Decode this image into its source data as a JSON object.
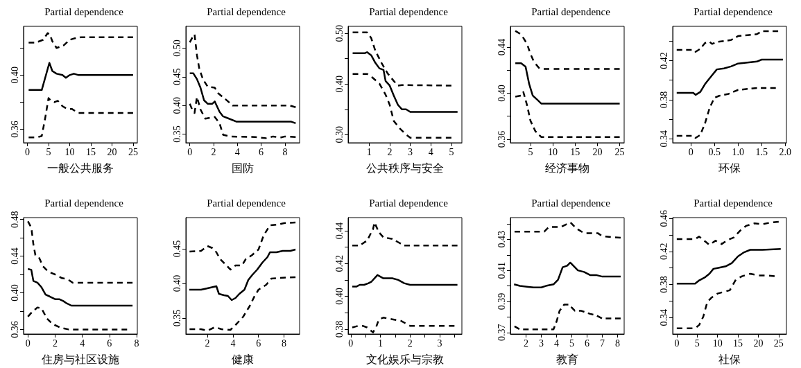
{
  "chart_data": [
    {
      "type": "line",
      "title": "Partial dependence",
      "xlabel": "一般公共服务",
      "xlim": [
        -0.9,
        26
      ],
      "ylim": [
        0.35,
        0.436
      ],
      "xticks": [
        0,
        5,
        10,
        15,
        20,
        25
      ],
      "yticks": [
        0.36,
        {
          "value": 0.38,
          "label": null
        },
        {
          "value": 0.4,
          "label": "0.40"
        },
        {
          "value": 0.42,
          "label": null
        }
      ],
      "series": [
        {
          "color": "#000000",
          "line_style": "solid",
          "x": [
            0.3,
            3.4,
            5.2,
            5.9,
            6.9,
            8.3,
            9.1,
            10,
            11,
            12.1,
            25
          ],
          "values": [
            0.389,
            0.389,
            0.409,
            0.403,
            0.401,
            0.4,
            0.398,
            0.4,
            0.401,
            0.4,
            0.4
          ]
        },
        {
          "color": "#000000",
          "line_style": "dashed",
          "x": [
            0.3,
            2,
            3.7,
            4.8,
            5.3,
            5.9,
            6.9,
            8.6,
            10,
            11,
            12.7,
            25
          ],
          "values": [
            0.424,
            0.424,
            0.426,
            0.431,
            0.43,
            0.425,
            0.42,
            0.422,
            0.426,
            0.427,
            0.428,
            0.428
          ]
        },
        {
          "color": "#000000",
          "line_style": "dashed",
          "x": [
            0.3,
            2.3,
            3.4,
            4.2,
            5,
            5.6,
            6.4,
            7.2,
            8.3,
            9.4,
            10.5,
            12.1,
            25
          ],
          "values": [
            0.354,
            0.354,
            0.355,
            0.368,
            0.383,
            0.381,
            0.38,
            0.381,
            0.377,
            0.375,
            0.375,
            0.372,
            0.372
          ]
        }
      ]
    },
    {
      "type": "line",
      "title": "Partial dependence",
      "xlabel": "国防",
      "xlim": [
        -0.33,
        9.23
      ],
      "ylim": [
        0.335,
        0.538
      ],
      "xticks": [
        0,
        2,
        4,
        6,
        8
      ],
      "yticks": [
        0.35,
        {
          "value": 0.4,
          "label": "0.40"
        },
        0.45,
        {
          "value": 0.5,
          "label": "0.50"
        }
      ],
      "series": [
        {
          "color": "#000000",
          "line_style": "solid",
          "x": [
            0,
            0.3,
            0.6,
            0.9,
            1.2,
            1.5,
            1.9,
            2.1,
            2.5,
            2.8,
            3.3,
            3.9,
            8.5,
            8.9
          ],
          "values": [
            0.456,
            0.456,
            0.446,
            0.431,
            0.409,
            0.403,
            0.403,
            0.407,
            0.389,
            0.381,
            0.377,
            0.372,
            0.372,
            0.369
          ]
        },
        {
          "color": "#000000",
          "line_style": "dashed",
          "x": [
            0,
            0.2,
            0.4,
            0.6,
            0.8,
            1.1,
            1.5,
            2.1,
            2.4,
            3,
            3.6,
            8.4,
            8.9
          ],
          "values": [
            0.51,
            0.518,
            0.524,
            0.488,
            0.464,
            0.446,
            0.433,
            0.431,
            0.421,
            0.411,
            0.4,
            0.4,
            0.397
          ]
        },
        {
          "color": "#000000",
          "line_style": "dashed",
          "x": [
            0,
            0.2,
            0.4,
            0.6,
            0.9,
            1.3,
            2.1,
            2.5,
            2.8,
            3.4,
            5.5,
            6.4,
            7.0,
            7.6,
            8.0,
            8.9
          ],
          "values": [
            0.403,
            0.393,
            0.387,
            0.415,
            0.393,
            0.377,
            0.38,
            0.369,
            0.349,
            0.346,
            0.345,
            0.343,
            0.346,
            0.344,
            0.346,
            0.345
          ]
        }
      ]
    },
    {
      "type": "line",
      "title": "Partial dependence",
      "xlabel": "公共秩序与安全",
      "xlim": [
        -0.02,
        5.51
      ],
      "ylim": [
        0.284,
        0.514
      ],
      "xticks": [
        1,
        2,
        3,
        4,
        5
      ],
      "yticks": [
        {
          "value": 0.3,
          "label": "0.30"
        },
        {
          "value": 0.35,
          "label": null
        },
        {
          "value": 0.4,
          "label": "0.40"
        },
        {
          "value": 0.45,
          "label": null
        },
        {
          "value": 0.5,
          "label": "0.50"
        }
      ],
      "series": [
        {
          "color": "#000000",
          "line_style": "solid",
          "x": [
            0.2,
            0.8,
            0.9,
            1.1,
            1.3,
            1.5,
            1.7,
            1.8,
            2.0,
            2.2,
            2.4,
            2.6,
            2.8,
            3.0,
            5.3
          ],
          "values": [
            0.461,
            0.461,
            0.463,
            0.457,
            0.442,
            0.431,
            0.428,
            0.406,
            0.397,
            0.377,
            0.359,
            0.35,
            0.35,
            0.345,
            0.345
          ]
        },
        {
          "color": "#000000",
          "line_style": "dashed",
          "x": [
            0.2,
            0.9,
            1.1,
            1.3,
            1.6,
            1.9,
            2.2,
            2.4,
            2.6,
            5.0
          ],
          "values": [
            0.502,
            0.502,
            0.491,
            0.466,
            0.442,
            0.421,
            0.406,
            0.397,
            0.398,
            0.397
          ]
        },
        {
          "color": "#000000",
          "line_style": "dashed",
          "x": [
            0.2,
            0.9,
            1.1,
            1.5,
            1.8,
            2.0,
            2.2,
            2.5,
            2.8,
            3.0,
            5.0
          ],
          "values": [
            0.42,
            0.42,
            0.415,
            0.401,
            0.379,
            0.359,
            0.327,
            0.312,
            0.3,
            0.294,
            0.294
          ]
        }
      ]
    },
    {
      "type": "line",
      "title": "Partial dependence",
      "xlabel": "经济事物",
      "xlim": [
        0.5,
        26
      ],
      "ylim": [
        0.357,
        0.458
      ],
      "xticks": [
        5,
        10,
        15,
        20,
        25
      ],
      "yticks": [
        0.36,
        {
          "value": 0.38,
          "label": null
        },
        {
          "value": 0.4,
          "label": "0.40"
        },
        {
          "value": 0.42,
          "label": null
        },
        0.44
      ],
      "series": [
        {
          "color": "#000000",
          "line_style": "solid",
          "x": [
            1.6,
            2.9,
            3.9,
            4.7,
            5.5,
            6.6,
            7.4,
            9.5,
            25
          ],
          "values": [
            0.426,
            0.426,
            0.423,
            0.408,
            0.398,
            0.394,
            0.391,
            0.391,
            0.391
          ]
        },
        {
          "color": "#000000",
          "line_style": "dashed",
          "x": [
            1.6,
            2.9,
            4.2,
            5,
            5.8,
            7.1,
            8.4,
            11,
            25
          ],
          "values": [
            0.454,
            0.451,
            0.443,
            0.434,
            0.427,
            0.421,
            0.421,
            0.421,
            0.421
          ]
        },
        {
          "color": "#000000",
          "line_style": "dashed",
          "x": [
            1.6,
            2.9,
            3.4,
            4.2,
            5,
            6.1,
            7.4,
            10,
            25
          ],
          "values": [
            0.397,
            0.398,
            0.401,
            0.39,
            0.376,
            0.367,
            0.362,
            0.362,
            0.362
          ]
        }
      ]
    },
    {
      "type": "line",
      "title": "Partial dependence",
      "xlabel": "环保",
      "xlim": [
        -0.385,
        2.025
      ],
      "ylim": [
        0.336,
        0.455
      ],
      "xticks": [
        0,
        0.5,
        {
          "value": 1,
          "label": "1.0"
        },
        1.5,
        {
          "value": 2,
          "label": "2.0"
        }
      ],
      "yticks": [
        0.34,
        {
          "value": 0.36,
          "label": null
        },
        0.38,
        {
          "value": 0.4,
          "label": null
        },
        0.42,
        {
          "value": 0.44,
          "label": null
        }
      ],
      "series": [
        {
          "color": "#000000",
          "line_style": "solid",
          "x": [
            -0.3,
            0.05,
            0.1,
            0.2,
            0.3,
            0.45,
            0.55,
            0.7,
            0.85,
            1.0,
            1.2,
            1.4,
            1.5,
            1.95
          ],
          "values": [
            0.387,
            0.387,
            0.385,
            0.388,
            0.396,
            0.405,
            0.411,
            0.412,
            0.414,
            0.417,
            0.418,
            0.419,
            0.421,
            0.421
          ]
        },
        {
          "color": "#000000",
          "line_style": "dashed",
          "x": [
            -0.3,
            0.05,
            0.1,
            0.2,
            0.3,
            0.4,
            0.45,
            0.55,
            0.7,
            0.85,
            1.0,
            1.2,
            1.4,
            1.5,
            1.85
          ],
          "values": [
            0.431,
            0.431,
            0.429,
            0.432,
            0.438,
            0.439,
            0.437,
            0.439,
            0.44,
            0.441,
            0.445,
            0.446,
            0.447,
            0.45,
            0.45
          ]
        },
        {
          "color": "#000000",
          "line_style": "dashed",
          "x": [
            -0.3,
            0.05,
            0.1,
            0.2,
            0.3,
            0.4,
            0.5,
            0.6,
            0.8,
            1.0,
            1.2,
            1.4,
            1.8
          ],
          "values": [
            0.343,
            0.343,
            0.341,
            0.344,
            0.356,
            0.372,
            0.382,
            0.384,
            0.386,
            0.39,
            0.391,
            0.392,
            0.392
          ]
        }
      ]
    },
    {
      "type": "line",
      "title": "Partial dependence",
      "xlabel": "住房与社区设施",
      "xlim": [
        -0.32,
        8.05
      ],
      "ylim": [
        0.355,
        0.482
      ],
      "xticks": [
        0,
        2,
        4,
        6,
        8
      ],
      "yticks": [
        0.36,
        {
          "value": 0.38,
          "label": null
        },
        {
          "value": 0.4,
          "label": "0.40"
        },
        {
          "value": 0.42,
          "label": null
        },
        0.44,
        {
          "value": 0.46,
          "label": null
        },
        0.48
      ],
      "series": [
        {
          "color": "#000000",
          "line_style": "solid",
          "x": [
            0,
            0.25,
            0.4,
            0.7,
            1.0,
            1.3,
            1.6,
            2.0,
            2.3,
            2.6,
            2.8,
            3.2,
            7.7
          ],
          "values": [
            0.426,
            0.425,
            0.413,
            0.411,
            0.406,
            0.398,
            0.396,
            0.393,
            0.393,
            0.391,
            0.389,
            0.386,
            0.386
          ]
        },
        {
          "color": "#000000",
          "line_style": "dashed",
          "x": [
            0,
            0.25,
            0.4,
            0.55,
            0.8,
            1.1,
            1.5,
            2.0,
            2.5,
            2.9,
            3.3,
            7.7
          ],
          "values": [
            0.478,
            0.471,
            0.453,
            0.441,
            0.439,
            0.429,
            0.423,
            0.42,
            0.416,
            0.415,
            0.411,
            0.411
          ]
        },
        {
          "color": "#000000",
          "line_style": "dashed",
          "x": [
            0,
            0.3,
            0.7,
            1.0,
            1.4,
            1.8,
            2.4,
            3.0,
            7.3
          ],
          "values": [
            0.374,
            0.379,
            0.384,
            0.383,
            0.372,
            0.366,
            0.362,
            0.36,
            0.36
          ]
        }
      ]
    },
    {
      "type": "line",
      "title": "Partial dependence",
      "xlabel": "健康",
      "xlim": [
        0.31,
        9.22
      ],
      "ylim": [
        0.327,
        0.495
      ],
      "xticks": [
        2,
        4,
        6,
        8
      ],
      "yticks": [
        0.35,
        {
          "value": 0.4,
          "label": "0.40"
        },
        0.45
      ],
      "series": [
        {
          "color": "#000000",
          "line_style": "solid",
          "x": [
            0.58,
            1.5,
            2.0,
            2.7,
            2.9,
            3.3,
            3.6,
            3.9,
            4.2,
            4.5,
            4.9,
            5.2,
            5.5,
            5.9,
            6.3,
            6.7,
            6.9,
            7.4,
            7.9,
            8.5,
            8.9
          ],
          "values": [
            0.391,
            0.391,
            0.393,
            0.396,
            0.385,
            0.383,
            0.382,
            0.376,
            0.379,
            0.385,
            0.391,
            0.405,
            0.412,
            0.42,
            0.43,
            0.438,
            0.445,
            0.445,
            0.447,
            0.447,
            0.449
          ]
        },
        {
          "color": "#000000",
          "line_style": "dashed",
          "x": [
            0.6,
            1.5,
            2.0,
            2.4,
            2.7,
            3.0,
            3.5,
            3.8,
            4.2,
            4.7,
            5.0,
            5.5,
            6.0,
            6.4,
            6.9,
            7.5,
            8.0,
            8.9
          ],
          "values": [
            0.446,
            0.447,
            0.454,
            0.451,
            0.445,
            0.435,
            0.426,
            0.42,
            0.426,
            0.426,
            0.435,
            0.441,
            0.449,
            0.469,
            0.484,
            0.485,
            0.487,
            0.488
          ]
        },
        {
          "color": "#000000",
          "line_style": "dashed",
          "x": [
            0.6,
            1.5,
            2.0,
            2.6,
            3.1,
            3.8,
            4.3,
            4.8,
            5.3,
            5.7,
            6.0,
            6.6,
            7.0,
            7.6,
            8.9
          ],
          "values": [
            0.334,
            0.334,
            0.332,
            0.337,
            0.334,
            0.333,
            0.342,
            0.352,
            0.367,
            0.382,
            0.391,
            0.398,
            0.407,
            0.408,
            0.409
          ]
        }
      ]
    },
    {
      "type": "line",
      "title": "Partial dependence",
      "xlabel": "文化娱乐与宗教",
      "xlim": [
        -0.09,
        3.75
      ],
      "ylim": [
        0.377,
        0.448
      ],
      "xticks": [
        0,
        {
          "value": 0.5,
          "label": null
        },
        1,
        {
          "value": 1.5,
          "label": null
        },
        2,
        {
          "value": 2.5,
          "label": null
        },
        3,
        {
          "value": 3.5,
          "label": null
        }
      ],
      "yticks": [
        0.38,
        {
          "value": 0.39,
          "label": null
        },
        {
          "value": 0.4,
          "label": "0.40"
        },
        {
          "value": 0.41,
          "label": null
        },
        0.42,
        {
          "value": 0.43,
          "label": null
        },
        0.44
      ],
      "series": [
        {
          "color": "#000000",
          "line_style": "solid",
          "x": [
            0.05,
            0.2,
            0.3,
            0.45,
            0.6,
            0.7,
            0.9,
            1.1,
            1.4,
            1.6,
            1.8,
            2.0,
            3.6
          ],
          "values": [
            0.406,
            0.406,
            0.407,
            0.407,
            0.408,
            0.409,
            0.413,
            0.411,
            0.411,
            0.41,
            0.408,
            0.407,
            0.407
          ]
        },
        {
          "color": "#000000",
          "line_style": "dashed",
          "x": [
            0.05,
            0.3,
            0.55,
            0.75,
            0.8,
            0.95,
            1.1,
            1.4,
            1.6,
            1.8,
            2.5,
            3.6
          ],
          "values": [
            0.431,
            0.431,
            0.434,
            0.441,
            0.445,
            0.439,
            0.436,
            0.435,
            0.433,
            0.431,
            0.431,
            0.431
          ]
        },
        {
          "color": "#000000",
          "line_style": "dashed",
          "x": [
            0.05,
            0.25,
            0.4,
            0.55,
            0.75,
            0.85,
            0.95,
            1.1,
            1.4,
            1.7,
            2.0,
            3.5
          ],
          "values": [
            0.381,
            0.382,
            0.382,
            0.381,
            0.378,
            0.381,
            0.386,
            0.387,
            0.386,
            0.385,
            0.382,
            0.382
          ]
        }
      ]
    },
    {
      "type": "line",
      "title": "Partial dependence",
      "xlabel": "教育",
      "xlim": [
        0.98,
        8.43
      ],
      "ylim": [
        0.369,
        0.444
      ],
      "xticks": [
        2,
        3,
        4,
        5,
        6,
        7,
        8
      ],
      "yticks": [
        0.37,
        {
          "value": 0.38,
          "label": null
        },
        0.39,
        {
          "value": 0.4,
          "label": null
        },
        0.41,
        {
          "value": 0.42,
          "label": null
        },
        0.43,
        {
          "value": 0.44,
          "label": null
        }
      ],
      "series": [
        {
          "color": "#000000",
          "line_style": "solid",
          "x": [
            1.22,
            1.6,
            2.5,
            3.0,
            3.3,
            3.8,
            4.1,
            4.4,
            4.7,
            4.9,
            5.1,
            5.4,
            5.8,
            6.2,
            6.6,
            7.0,
            8.2
          ],
          "values": [
            0.401,
            0.4,
            0.399,
            0.399,
            0.4,
            0.401,
            0.404,
            0.412,
            0.413,
            0.415,
            0.413,
            0.41,
            0.409,
            0.407,
            0.407,
            0.406,
            0.406
          ]
        },
        {
          "color": "#000000",
          "line_style": "dashed",
          "x": [
            1.25,
            2.5,
            3.2,
            3.5,
            3.8,
            4.3,
            4.9,
            5.3,
            5.8,
            6.3,
            6.7,
            7.0,
            8.2
          ],
          "values": [
            0.435,
            0.435,
            0.435,
            0.438,
            0.438,
            0.438,
            0.441,
            0.437,
            0.434,
            0.434,
            0.434,
            0.432,
            0.431
          ]
        },
        {
          "color": "#000000",
          "line_style": "dashed",
          "x": [
            1.25,
            1.6,
            2.3,
            2.8,
            3.4,
            3.8,
            4.0,
            4.2,
            4.5,
            4.8,
            5.2,
            5.6,
            6.2,
            6.6,
            7.0,
            7.5,
            8.2
          ],
          "values": [
            0.374,
            0.372,
            0.372,
            0.372,
            0.372,
            0.372,
            0.377,
            0.384,
            0.388,
            0.388,
            0.384,
            0.384,
            0.382,
            0.381,
            0.379,
            0.379,
            0.379
          ]
        }
      ]
    },
    {
      "type": "line",
      "title": "Partial dependence",
      "xlabel": "社保",
      "xlim": [
        -1.0,
        26.9
      ],
      "ylim": [
        0.32,
        0.461
      ],
      "xticks": [
        0,
        5,
        10,
        15,
        20,
        25
      ],
      "yticks": [
        0.34,
        {
          "value": 0.36,
          "label": null
        },
        0.38,
        {
          "value": 0.4,
          "label": null
        },
        0.42,
        {
          "value": 0.44,
          "label": null
        },
        0.46
      ],
      "series": [
        {
          "color": "#000000",
          "line_style": "solid",
          "x": [
            0,
            4.5,
            5.5,
            7,
            8,
            9,
            10,
            12,
            13.5,
            15,
            16.5,
            18,
            20,
            21,
            25.5
          ],
          "values": [
            0.381,
            0.381,
            0.385,
            0.389,
            0.393,
            0.399,
            0.4,
            0.402,
            0.406,
            0.414,
            0.419,
            0.422,
            0.422,
            0.422,
            0.423
          ]
        },
        {
          "color": "#000000",
          "line_style": "dashed",
          "x": [
            0,
            4.5,
            5.5,
            7,
            8,
            9.5,
            11,
            12.5,
            14,
            15.5,
            17,
            19,
            21,
            23,
            25
          ],
          "values": [
            0.435,
            0.435,
            0.438,
            0.432,
            0.428,
            0.433,
            0.429,
            0.434,
            0.437,
            0.445,
            0.451,
            0.454,
            0.453,
            0.455,
            0.456
          ]
        },
        {
          "color": "#000000",
          "line_style": "dashed",
          "x": [
            0,
            4.5,
            5.5,
            6.5,
            7.5,
            8.5,
            10,
            11.5,
            13,
            14.5,
            16,
            18,
            20,
            22,
            24
          ],
          "values": [
            0.327,
            0.327,
            0.331,
            0.341,
            0.359,
            0.364,
            0.369,
            0.371,
            0.373,
            0.386,
            0.39,
            0.393,
            0.391,
            0.391,
            0.39
          ]
        }
      ]
    }
  ]
}
